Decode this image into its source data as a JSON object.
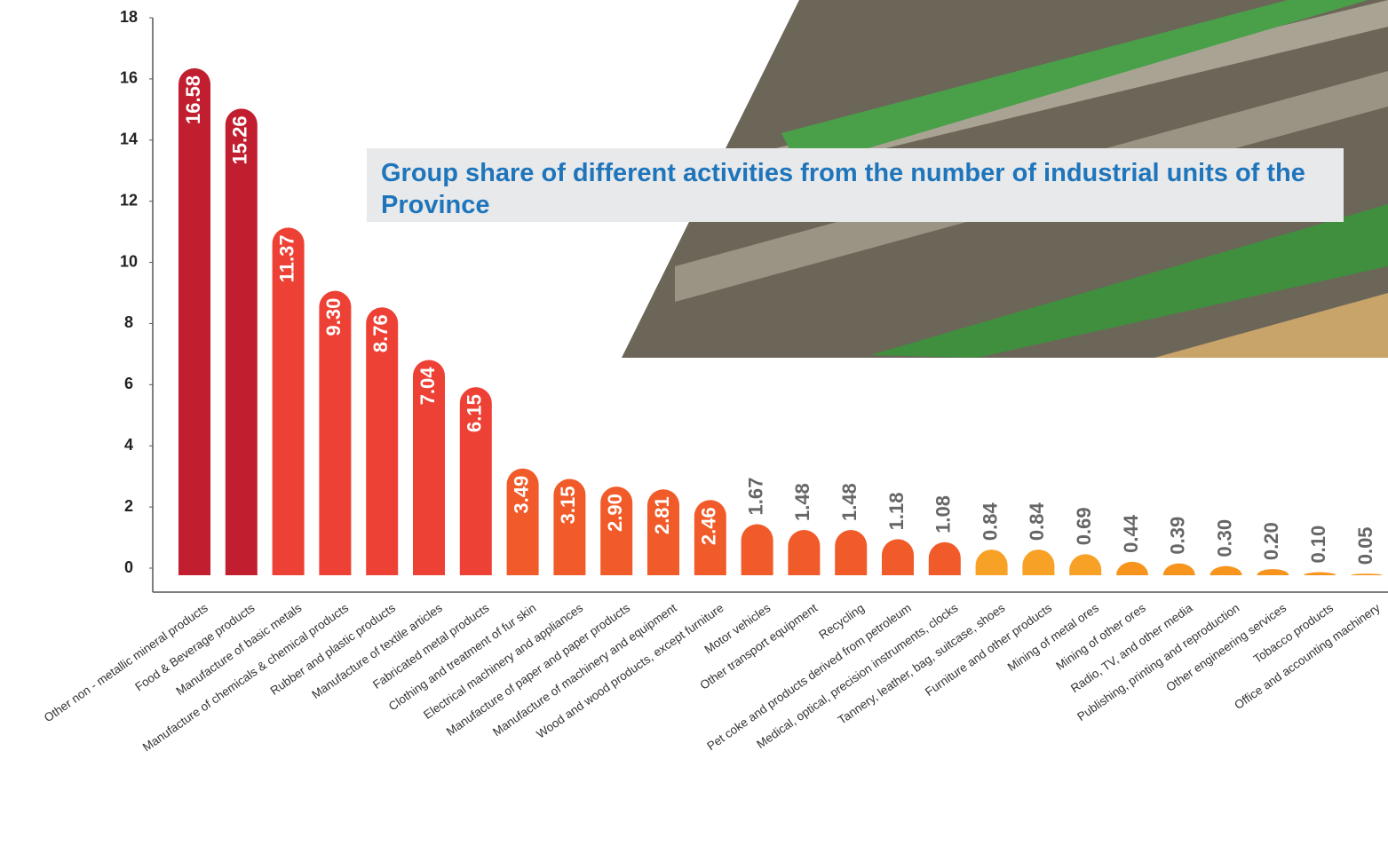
{
  "chart_data": {
    "type": "bar",
    "title": "Group share of different activities from the number of industrial units of the Province",
    "categories": [
      "Other non - metallic mineral products",
      "Food & Beverage products",
      "Manufacture of basic metals",
      "Manufacture of chemicals & chemical products",
      "Rubber and plastic products",
      "Manufacture of textile articles",
      "Fabricated metal products",
      "Clothing and treatment of fur skin",
      "Electrical machinery and appliances",
      "Manufacture of paper and paper products",
      "Manufacture of machinery and equipment",
      "Wood and wood products, except furniture",
      "Motor vehicles",
      "Other transport equipment",
      "Recycling",
      "Pet coke and products derived from petroleum",
      "Medical, optical, precision instruments, clocks",
      "Tannery, leather, bag, suitcase, shoes",
      "Furniture and other products",
      "Mining of metal ores",
      "Mining of other ores",
      "Radio, TV, and other media",
      "Publishing, printing and reproduction",
      "Other engineering services",
      "Tobacco products",
      "Office and accounting machinery"
    ],
    "values": [
      16.58,
      15.26,
      11.37,
      9.3,
      8.76,
      7.04,
      6.15,
      3.49,
      3.15,
      2.9,
      2.81,
      2.46,
      1.67,
      1.48,
      1.48,
      1.18,
      1.08,
      0.84,
      0.84,
      0.69,
      0.44,
      0.39,
      0.3,
      0.2,
      0.1,
      0.05
    ],
    "value_labels": [
      "16.58",
      "15.26",
      "11.37",
      "9.30",
      "8.76",
      "7.04",
      "6.15",
      "3.49",
      "3.15",
      "2.90",
      "2.81",
      "2.46",
      "1.67",
      "1.48",
      "1.48",
      "1.18",
      "1.08",
      "0.84",
      "0.84",
      "0.69",
      "0.44",
      "0.39",
      "0.30",
      "0.20",
      "0.10",
      "0.05"
    ],
    "colors": [
      "#c11f2f",
      "#c11f2f",
      "#ee4136",
      "#ee4136",
      "#ee4136",
      "#ee4136",
      "#ee4136",
      "#f15a29",
      "#f15a29",
      "#f15a29",
      "#f15a29",
      "#f15a29",
      "#f15a29",
      "#f15a29",
      "#f15a29",
      "#f15a29",
      "#f15a29",
      "#f7a126",
      "#f7a126",
      "#f7a126",
      "#f7941d",
      "#f7941d",
      "#f7941d",
      "#f7941d",
      "#f7941d",
      "#f7941d"
    ],
    "ylim": [
      0,
      18
    ],
    "yticks": [
      0,
      2,
      4,
      6,
      8,
      10,
      12,
      14,
      16,
      18
    ]
  }
}
